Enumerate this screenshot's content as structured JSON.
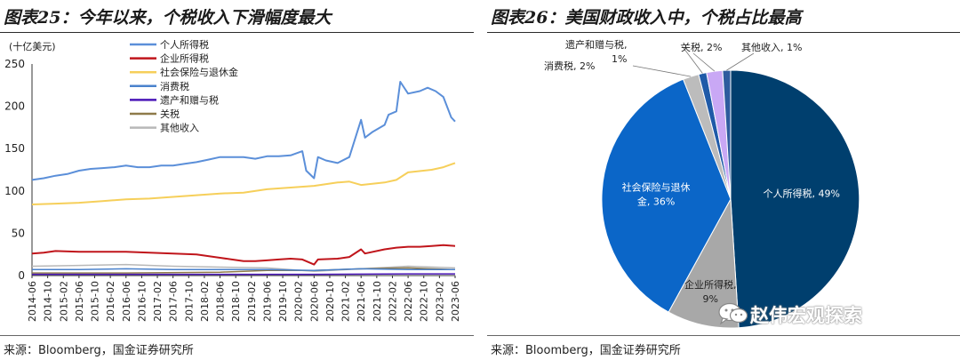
{
  "left": {
    "title": "图表25：今年以来，个税收入下滑幅度最大",
    "source": "来源：Bloomberg，国金证券研究所"
  },
  "right": {
    "title": "图表26：美国财政收入中，个税占比最高",
    "source": "来源：Bloomberg，国金证券研究所"
  },
  "watermark": "赵伟宏观探索",
  "chart_data": [
    {
      "type": "line",
      "unit_label": "(十亿美元)",
      "ylim": [
        0,
        250
      ],
      "yticks": [
        0,
        50,
        100,
        150,
        200,
        250
      ],
      "x_start": "2014-06",
      "x_end": "2023-06",
      "xtick_labels": [
        "2014-06",
        "2014-10",
        "2015-02",
        "2015-06",
        "2015-10",
        "2016-02",
        "2016-06",
        "2016-10",
        "2017-02",
        "2017-06",
        "2017-10",
        "2018-02",
        "2018-06",
        "2018-10",
        "2019-02",
        "2019-06",
        "2019-10",
        "2020-02",
        "2020-06",
        "2020-10",
        "2021-02",
        "2021-06",
        "2021-10",
        "2022-02",
        "2022-06",
        "2022-10",
        "2023-02",
        "2023-06"
      ],
      "legend_position": "top",
      "series": [
        {
          "name": "个人所得税",
          "color": "#5b8fd9",
          "width": 2,
          "points": [
            [
              "2014-06",
              113
            ],
            [
              "2014-09",
              115
            ],
            [
              "2014-12",
              118
            ],
            [
              "2015-03",
              120
            ],
            [
              "2015-06",
              124
            ],
            [
              "2015-09",
              126
            ],
            [
              "2015-12",
              127
            ],
            [
              "2016-03",
              128
            ],
            [
              "2016-06",
              130
            ],
            [
              "2016-09",
              128
            ],
            [
              "2016-12",
              128
            ],
            [
              "2017-03",
              130
            ],
            [
              "2017-06",
              130
            ],
            [
              "2017-09",
              132
            ],
            [
              "2017-12",
              134
            ],
            [
              "2018-03",
              137
            ],
            [
              "2018-06",
              140
            ],
            [
              "2018-09",
              140
            ],
            [
              "2018-12",
              140
            ],
            [
              "2019-03",
              138
            ],
            [
              "2019-06",
              141
            ],
            [
              "2019-09",
              141
            ],
            [
              "2019-12",
              142
            ],
            [
              "2020-03",
              147
            ],
            [
              "2020-04",
              124
            ],
            [
              "2020-06",
              115
            ],
            [
              "2020-07",
              140
            ],
            [
              "2020-09",
              136
            ],
            [
              "2020-12",
              133
            ],
            [
              "2021-03",
              140
            ],
            [
              "2021-06",
              184
            ],
            [
              "2021-07",
              163
            ],
            [
              "2021-09",
              170
            ],
            [
              "2021-12",
              178
            ],
            [
              "2022-01",
              190
            ],
            [
              "2022-03",
              194
            ],
            [
              "2022-04",
              229
            ],
            [
              "2022-06",
              215
            ],
            [
              "2022-09",
              218
            ],
            [
              "2022-11",
              222
            ],
            [
              "2023-01",
              218
            ],
            [
              "2023-03",
              211
            ],
            [
              "2023-05",
              187
            ],
            [
              "2023-06",
              182
            ]
          ]
        },
        {
          "name": "企业所得税",
          "color": "#c0151b",
          "width": 2,
          "points": [
            [
              "2014-06",
              26
            ],
            [
              "2014-09",
              27
            ],
            [
              "2014-12",
              29
            ],
            [
              "2015-06",
              28
            ],
            [
              "2015-12",
              28
            ],
            [
              "2016-06",
              28
            ],
            [
              "2016-12",
              27
            ],
            [
              "2017-06",
              26
            ],
            [
              "2017-12",
              25
            ],
            [
              "2018-03",
              23
            ],
            [
              "2018-06",
              21
            ],
            [
              "2018-09",
              19
            ],
            [
              "2018-12",
              17
            ],
            [
              "2019-03",
              17
            ],
            [
              "2019-06",
              18
            ],
            [
              "2019-09",
              19
            ],
            [
              "2019-12",
              20
            ],
            [
              "2020-03",
              19
            ],
            [
              "2020-06",
              13
            ],
            [
              "2020-07",
              19
            ],
            [
              "2020-12",
              20
            ],
            [
              "2021-03",
              22
            ],
            [
              "2021-06",
              31
            ],
            [
              "2021-07",
              26
            ],
            [
              "2021-12",
              31
            ],
            [
              "2022-03",
              33
            ],
            [
              "2022-06",
              34
            ],
            [
              "2022-09",
              34
            ],
            [
              "2022-12",
              35
            ],
            [
              "2023-03",
              36
            ],
            [
              "2023-06",
              35
            ]
          ]
        },
        {
          "name": "社会保险与退休金",
          "color": "#f6cf5a",
          "width": 2,
          "points": [
            [
              "2014-06",
              84
            ],
            [
              "2014-12",
              85
            ],
            [
              "2015-06",
              86
            ],
            [
              "2015-12",
              88
            ],
            [
              "2016-06",
              90
            ],
            [
              "2016-12",
              91
            ],
            [
              "2017-06",
              93
            ],
            [
              "2017-12",
              95
            ],
            [
              "2018-06",
              97
            ],
            [
              "2018-12",
              98
            ],
            [
              "2019-06",
              102
            ],
            [
              "2019-12",
              104
            ],
            [
              "2020-06",
              106
            ],
            [
              "2020-12",
              110
            ],
            [
              "2021-03",
              111
            ],
            [
              "2021-06",
              107
            ],
            [
              "2021-12",
              110
            ],
            [
              "2022-03",
              113
            ],
            [
              "2022-06",
              122
            ],
            [
              "2022-12",
              125
            ],
            [
              "2023-03",
              128
            ],
            [
              "2023-06",
              133
            ]
          ]
        },
        {
          "name": "消费税",
          "color": "#4a82cc",
          "width": 1.5,
          "points": [
            [
              "2014-06",
              7
            ],
            [
              "2015-06",
              7
            ],
            [
              "2016-06",
              8
            ],
            [
              "2017-06",
              7
            ],
            [
              "2018-06",
              7
            ],
            [
              "2019-06",
              7
            ],
            [
              "2020-06",
              6
            ],
            [
              "2021-06",
              8
            ],
            [
              "2022-06",
              7
            ],
            [
              "2023-06",
              7
            ]
          ]
        },
        {
          "name": "遗产和赠与税",
          "color": "#4a16b8",
          "width": 1.5,
          "points": [
            [
              "2014-06",
              1.5
            ],
            [
              "2016-06",
              1.5
            ],
            [
              "2018-06",
              1.5
            ],
            [
              "2020-06",
              1.5
            ],
            [
              "2022-06",
              2
            ],
            [
              "2023-06",
              2
            ]
          ]
        },
        {
          "name": "关税",
          "color": "#8e7a4a",
          "width": 1.5,
          "points": [
            [
              "2014-06",
              3
            ],
            [
              "2016-06",
              3
            ],
            [
              "2018-06",
              4
            ],
            [
              "2019-06",
              6
            ],
            [
              "2020-06",
              6
            ],
            [
              "2021-06",
              8
            ],
            [
              "2022-06",
              9
            ],
            [
              "2023-06",
              7
            ]
          ]
        },
        {
          "name": "其他收入",
          "color": "#b8b8b8",
          "width": 1.5,
          "points": [
            [
              "2014-06",
              11
            ],
            [
              "2015-06",
              12
            ],
            [
              "2016-06",
              13
            ],
            [
              "2017-06",
              11
            ],
            [
              "2018-06",
              10
            ],
            [
              "2019-06",
              9
            ],
            [
              "2020-06",
              5
            ],
            [
              "2021-06",
              8
            ],
            [
              "2022-06",
              11
            ],
            [
              "2023-06",
              9
            ]
          ]
        }
      ]
    },
    {
      "type": "pie",
      "slices": [
        {
          "label": "个人所得税, 49%",
          "value": 49,
          "color": "#003f6e"
        },
        {
          "label": "企业所得税, 9%",
          "value": 9,
          "color": "#a8a8a8"
        },
        {
          "label": "社会保险与退休金, 36%",
          "value": 36,
          "color": "#0b66c8"
        },
        {
          "label": "消费税, 2%",
          "value": 2,
          "color": "#bcbcbc"
        },
        {
          "label": "遗产和赠与税, 1%",
          "value": 1,
          "color": "#1f5aa8"
        },
        {
          "label": "关税, 2%",
          "value": 2,
          "color": "#c9a8f5"
        },
        {
          "label": "其他收入, 1%",
          "value": 1,
          "color": "#2e5c9e"
        }
      ]
    }
  ]
}
